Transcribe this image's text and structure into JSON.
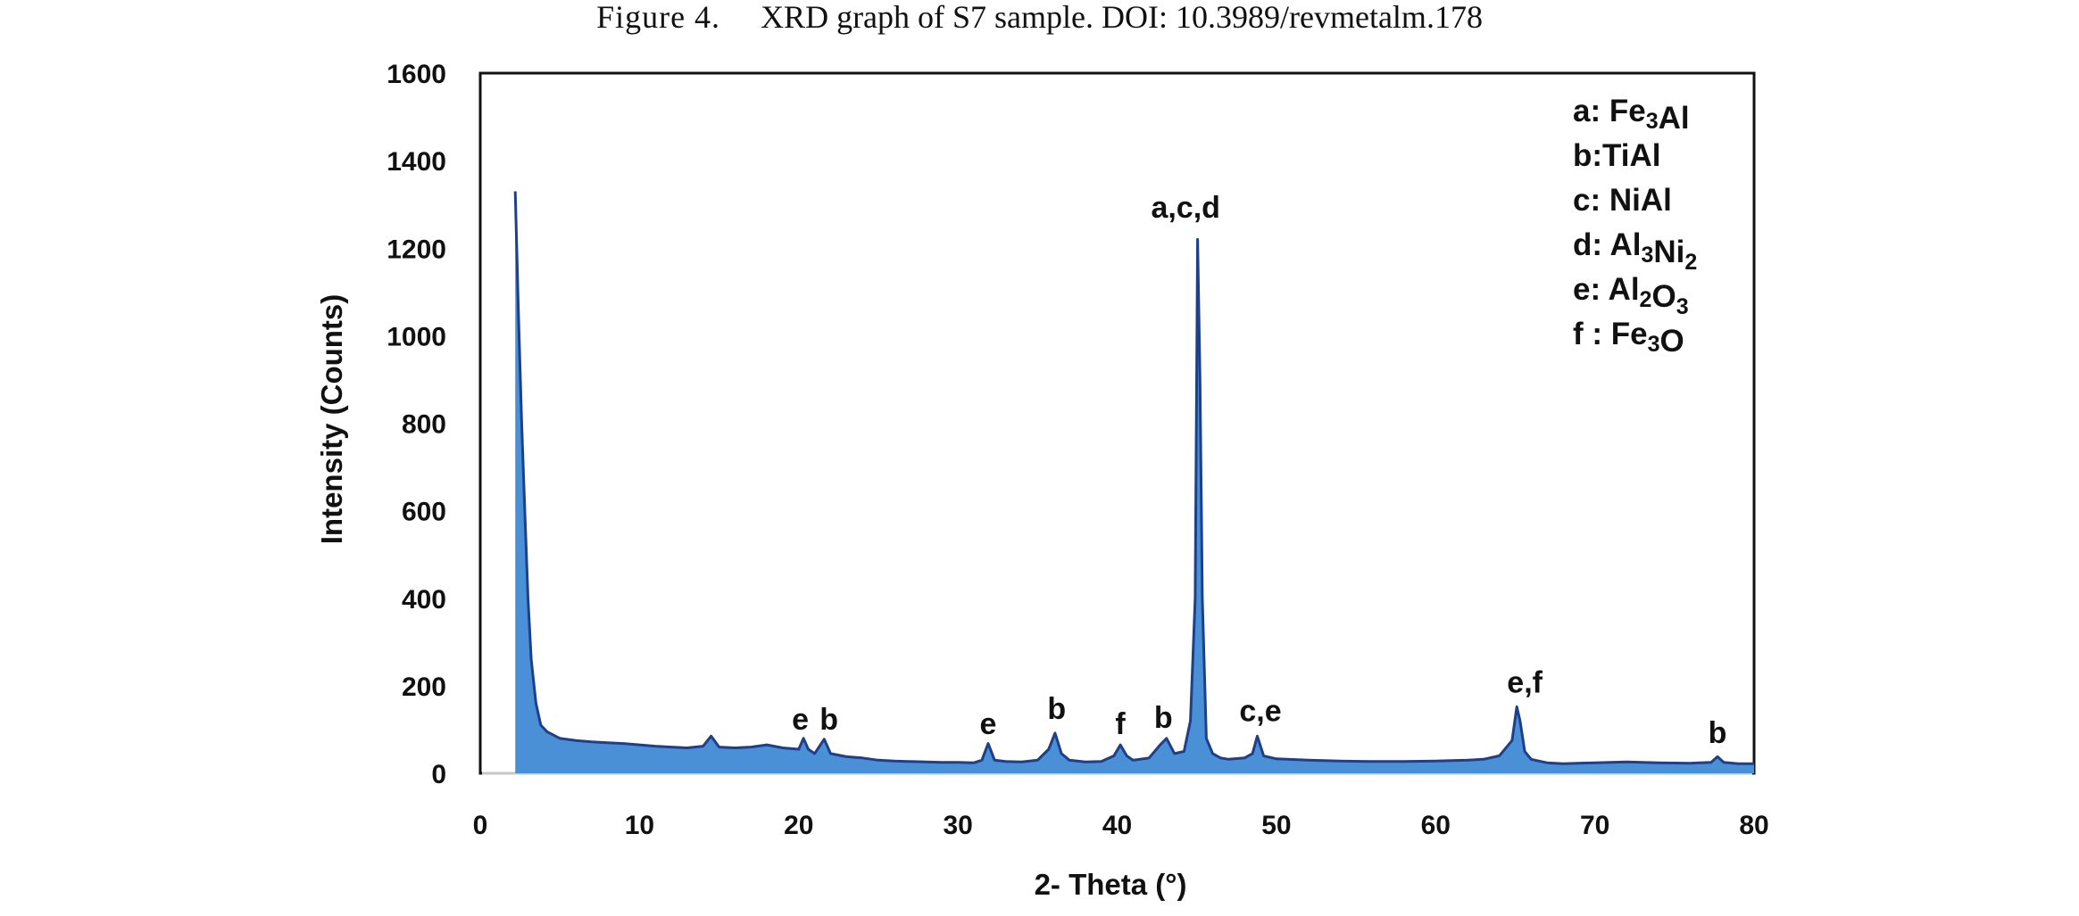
{
  "caption": {
    "label": "Figure 4.",
    "text": "XRD graph of S7 sample.  DOI: 10.3989/revmetalm.178"
  },
  "colors": {
    "fill": "#4a90d6",
    "line": "#1e3f8a",
    "axis": "#111111",
    "baseline": "#c8c8c8"
  },
  "chart_data": {
    "type": "line",
    "title": "",
    "xlabel": "2- Theta  (°)",
    "ylabel": "Intensity (Counts)",
    "xlim": [
      0,
      80
    ],
    "ylim": [
      0,
      1600
    ],
    "xticks": [
      0,
      10,
      20,
      30,
      40,
      50,
      60,
      70,
      80
    ],
    "yticks": [
      0,
      200,
      400,
      600,
      800,
      1000,
      1200,
      1400,
      1600
    ],
    "grid": false,
    "legend_position": "top-right",
    "series": [
      {
        "x": [
          2.2,
          2.4,
          2.6,
          2.8,
          3.0,
          3.2,
          3.5,
          3.8,
          4.2,
          5,
          6,
          7,
          8,
          9,
          10,
          11,
          12,
          13,
          14,
          14.5,
          15,
          16,
          17,
          18,
          19,
          20,
          20.3,
          20.6,
          21,
          21.6,
          22,
          23,
          24,
          25,
          26,
          27,
          28,
          29,
          30,
          31,
          31.5,
          31.9,
          32.3,
          33,
          34,
          35,
          35.7,
          36.1,
          36.5,
          37,
          38,
          39,
          39.8,
          40.2,
          40.6,
          41,
          42,
          42.7,
          43.1,
          43.6,
          44.2,
          44.6,
          44.9,
          45.05,
          45.2,
          45.35,
          45.6,
          46,
          46.5,
          47,
          48,
          48.5,
          48.8,
          49.2,
          50,
          52,
          54,
          56,
          58,
          60,
          62,
          63,
          64,
          64.8,
          65.1,
          65.3,
          65.6,
          66,
          66.5,
          67,
          68,
          70,
          72,
          74,
          76,
          77.3,
          77.7,
          78.1,
          79,
          80
        ],
        "y": [
          1330,
          1050,
          800,
          600,
          400,
          260,
          160,
          110,
          95,
          80,
          75,
          72,
          70,
          68,
          65,
          62,
          60,
          58,
          62,
          85,
          60,
          58,
          60,
          65,
          58,
          55,
          80,
          55,
          45,
          78,
          45,
          38,
          35,
          30,
          28,
          27,
          26,
          25,
          25,
          24,
          30,
          68,
          30,
          27,
          26,
          30,
          55,
          92,
          45,
          30,
          26,
          27,
          40,
          65,
          40,
          30,
          35,
          65,
          80,
          45,
          50,
          120,
          400,
          1220,
          900,
          400,
          80,
          45,
          35,
          32,
          35,
          45,
          85,
          40,
          33,
          30,
          28,
          27,
          27,
          28,
          30,
          32,
          40,
          75,
          152,
          120,
          50,
          32,
          28,
          24,
          22,
          24,
          26,
          24,
          23,
          25,
          38,
          25,
          22,
          22
        ]
      }
    ],
    "peak_labels": [
      {
        "text": "e",
        "x": 20.1,
        "y": 75
      },
      {
        "text": "b",
        "x": 21.9,
        "y": 75
      },
      {
        "text": "e",
        "x": 31.9,
        "y": 65
      },
      {
        "text": "b",
        "x": 36.2,
        "y": 100
      },
      {
        "text": "f",
        "x": 40.2,
        "y": 65
      },
      {
        "text": "b",
        "x": 42.9,
        "y": 80
      },
      {
        "text": "a,c,d",
        "x": 44.3,
        "y": 1245
      },
      {
        "text": "c,e",
        "x": 49.0,
        "y": 95
      },
      {
        "text": "e,f",
        "x": 65.6,
        "y": 160
      },
      {
        "text": "b",
        "x": 77.7,
        "y": 45
      }
    ],
    "legend": [
      {
        "parts": [
          {
            "t": "a: Fe"
          },
          {
            "t": "3",
            "sub": true
          },
          {
            "t": "Al"
          }
        ]
      },
      {
        "parts": [
          {
            "t": "b:TiAl"
          }
        ]
      },
      {
        "parts": [
          {
            "t": "c: NiAl"
          }
        ]
      },
      {
        "parts": [
          {
            "t": "d: Al"
          },
          {
            "t": "3",
            "sub": true
          },
          {
            "t": "Ni"
          },
          {
            "t": "2",
            "sub": true
          }
        ]
      },
      {
        "parts": [
          {
            "t": "e: Al"
          },
          {
            "t": "2",
            "sub": true
          },
          {
            "t": "O"
          },
          {
            "t": "3",
            "sub": true
          }
        ]
      },
      {
        "parts": [
          {
            "t": "f : Fe"
          },
          {
            "t": "3",
            "sub": true
          },
          {
            "t": "O"
          }
        ]
      }
    ]
  }
}
